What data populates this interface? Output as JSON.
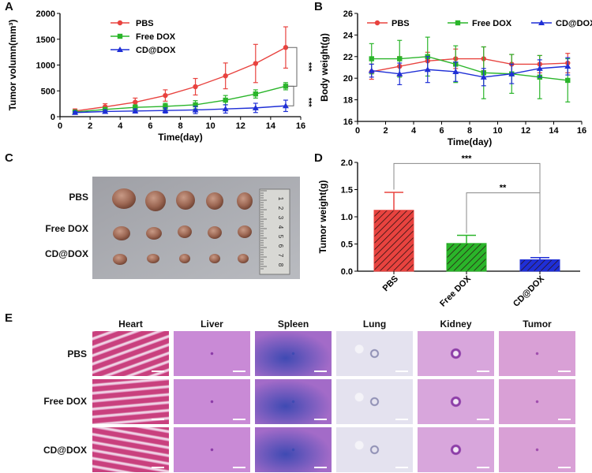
{
  "panels": {
    "A": "A",
    "B": "B",
    "C": "C",
    "D": "D",
    "E": "E"
  },
  "chart_data": [
    {
      "id": "A",
      "type": "line",
      "xlabel": "Time(day)",
      "ylabel": "Tumor volumn(mm³)",
      "xlim": [
        0,
        16
      ],
      "ylim": [
        0,
        2000
      ],
      "xticks": [
        0,
        2,
        4,
        6,
        8,
        10,
        12,
        14,
        16
      ],
      "yticks": [
        0,
        500,
        1000,
        1500,
        2000
      ],
      "x": [
        1,
        3,
        5,
        7,
        9,
        11,
        13,
        15
      ],
      "series": [
        {
          "name": "PBS",
          "color": "#e8433f",
          "marker": "circle",
          "values": [
            110,
            190,
            280,
            410,
            580,
            790,
            1030,
            1340
          ],
          "errors": [
            40,
            60,
            80,
            110,
            160,
            250,
            370,
            400
          ]
        },
        {
          "name": "Free DOX",
          "color": "#2ab52a",
          "marker": "square",
          "values": [
            90,
            140,
            180,
            200,
            230,
            320,
            440,
            590
          ],
          "errors": [
            30,
            40,
            50,
            60,
            80,
            90,
            80,
            70
          ]
        },
        {
          "name": "CD@DOX",
          "color": "#1f2fd6",
          "marker": "triangle",
          "values": [
            80,
            100,
            110,
            120,
            130,
            150,
            170,
            210
          ],
          "errors": [
            20,
            30,
            40,
            50,
            70,
            80,
            90,
            110
          ]
        }
      ],
      "annotations": [
        "***",
        "***"
      ]
    },
    {
      "id": "B",
      "type": "line",
      "xlabel": "Time(day)",
      "ylabel": "Body weight(g)",
      "xlim": [
        0,
        16
      ],
      "ylim": [
        16,
        26
      ],
      "xticks": [
        0,
        2,
        4,
        6,
        8,
        10,
        12,
        14,
        16
      ],
      "yticks": [
        16,
        18,
        20,
        22,
        24,
        26
      ],
      "x": [
        1,
        3,
        5,
        7,
        9,
        11,
        13,
        15
      ],
      "series": [
        {
          "name": "PBS",
          "color": "#e8433f",
          "marker": "circle",
          "values": [
            20.6,
            21.1,
            21.6,
            21.8,
            21.8,
            21.3,
            21.3,
            21.4
          ],
          "errors": [
            0.7,
            0.9,
            0.8,
            0.9,
            1.1,
            0.9,
            0.8,
            0.9
          ]
        },
        {
          "name": "Free DOX",
          "color": "#2ab52a",
          "marker": "square",
          "values": [
            21.8,
            21.8,
            22.0,
            21.3,
            20.5,
            20.4,
            20.1,
            19.8
          ],
          "errors": [
            1.4,
            1.7,
            1.8,
            1.7,
            2.4,
            1.8,
            2.0,
            2.0
          ]
        },
        {
          "name": "CD@DOX",
          "color": "#1f2fd6",
          "marker": "triangle",
          "values": [
            20.7,
            20.4,
            20.8,
            20.6,
            20.1,
            20.4,
            20.9,
            21.1
          ],
          "errors": [
            0.6,
            1.0,
            1.2,
            0.9,
            0.8,
            0.9,
            0.8,
            0.8
          ]
        }
      ]
    },
    {
      "id": "D",
      "type": "bar",
      "ylabel": "Tumor weight(g)",
      "ylim": [
        0.0,
        2.0
      ],
      "yticks": [
        "0.0",
        "0.5",
        "1.0",
        "1.5",
        "2.0"
      ],
      "categories": [
        "PBS",
        "Free DOX",
        "CD@DOX"
      ],
      "values": [
        1.12,
        0.51,
        0.21
      ],
      "errors": [
        0.33,
        0.15,
        0.04
      ],
      "colors": [
        "#e8433f",
        "#2ab52a",
        "#1f2fd6"
      ],
      "annotations": [
        "***",
        "**"
      ]
    }
  ],
  "photo": {
    "rows": [
      "PBS",
      "Free DOX",
      "CD@DOX"
    ],
    "ruler_numbers": [
      "1",
      "2",
      "3",
      "4",
      "5",
      "6",
      "7",
      "8"
    ]
  },
  "histology": {
    "columns": [
      "Heart",
      "Liver",
      "Spleen",
      "Lung",
      "Kidney",
      "Tumor"
    ],
    "rows": [
      "PBS",
      "Free DOX",
      "CD@DOX"
    ]
  }
}
